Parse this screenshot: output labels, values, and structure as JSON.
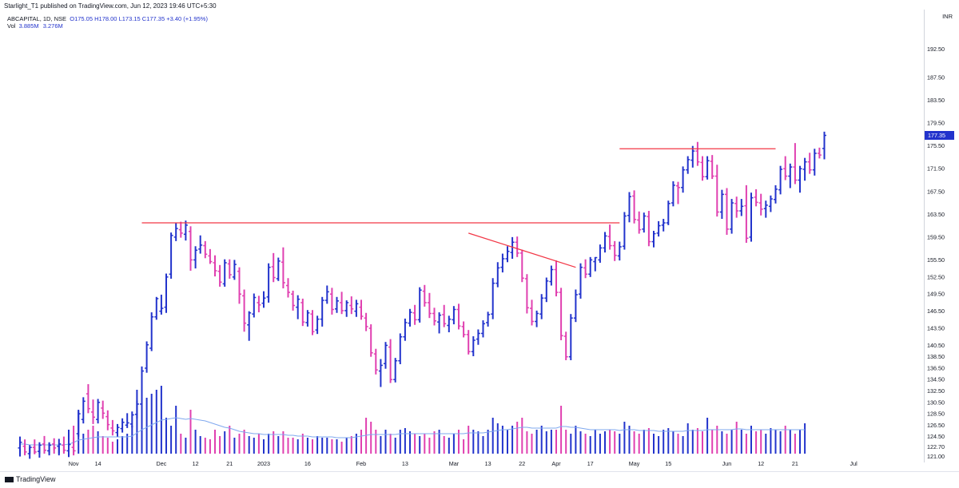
{
  "publish_line": "Starlight_T1 published on TradingView.com, Jun 12, 2023 19:46 UTC+5:30",
  "legend": {
    "symbol": "ABCAPITAL, 1D, NSE",
    "open": "O175.05",
    "high": "H178.00",
    "low": "L173.15",
    "close": "C177.35",
    "change": "+3.40 (+1.95%)",
    "vol_label": "Vol",
    "vol_value": "3.885M",
    "vol_ma": "3.276M"
  },
  "currency": "INR",
  "footer_brand": "TradingView",
  "colors": {
    "up": "#2233cc",
    "down": "#e040b0",
    "line": "#f23645",
    "vol_ma": "#7fa8ef",
    "last_price_bg": "#2233cc"
  },
  "chart_data": {
    "type": "ohlc-bar",
    "symbol": "ABCAPITAL",
    "interval": "1D",
    "exchange": "NSE",
    "ylim": [
      121.5,
      195.5
    ],
    "y_ticks": [
      192.5,
      187.5,
      183.5,
      179.5,
      175.5,
      171.5,
      167.5,
      163.5,
      159.5,
      155.5,
      152.5,
      149.5,
      146.5,
      143.5,
      140.5,
      138.5,
      136.5,
      134.5,
      132.5,
      130.5,
      128.5,
      126.5,
      124.5,
      122.7,
      121.0
    ],
    "y_tick_labels": [
      "192.50",
      "187.50",
      "183.50",
      "179.50",
      "175.50",
      "171.50",
      "167.50",
      "163.50",
      "159.50",
      "155.50",
      "152.50",
      "149.50",
      "146.50",
      "143.50",
      "140.50",
      "138.50",
      "136.50",
      "134.50",
      "132.50",
      "130.50",
      "128.50",
      "126.50",
      "124.50",
      "122.70",
      "121.00"
    ],
    "last_price": "177.35",
    "x_ticks": [
      {
        "i": 11,
        "label": "Nov"
      },
      {
        "i": 16,
        "label": "14"
      },
      {
        "i": 29,
        "label": "Dec"
      },
      {
        "i": 36,
        "label": "12"
      },
      {
        "i": 43,
        "label": "21"
      },
      {
        "i": 50,
        "label": "2023"
      },
      {
        "i": 59,
        "label": "16"
      },
      {
        "i": 70,
        "label": "Feb"
      },
      {
        "i": 79,
        "label": "13"
      },
      {
        "i": 89,
        "label": "Mar"
      },
      {
        "i": 96,
        "label": "13"
      },
      {
        "i": 103,
        "label": "22"
      },
      {
        "i": 110,
        "label": "Apr"
      },
      {
        "i": 117,
        "label": "17"
      },
      {
        "i": 126,
        "label": "May"
      },
      {
        "i": 133,
        "label": "15"
      },
      {
        "i": 145,
        "label": "Jun"
      },
      {
        "i": 152,
        "label": "12"
      },
      {
        "i": 159,
        "label": "21"
      },
      {
        "i": 171,
        "label": "Jul"
      }
    ],
    "bars": [
      [
        122.5,
        124.5,
        121.0,
        123.5
      ],
      [
        122.8,
        124.0,
        121.2,
        121.8
      ],
      [
        121.5,
        123.0,
        120.6,
        122.6
      ],
      [
        122.6,
        124.0,
        121.4,
        121.8
      ],
      [
        121.9,
        123.5,
        120.8,
        123.0
      ],
      [
        123.2,
        124.6,
        121.9,
        122.1
      ],
      [
        122.0,
        123.5,
        121.2,
        123.0
      ],
      [
        123.2,
        124.2,
        122.1,
        122.5
      ],
      [
        122.8,
        124.1,
        121.2,
        123.2
      ],
      [
        123.0,
        124.5,
        121.8,
        122.1
      ],
      [
        122.0,
        124.1,
        120.9,
        123.1
      ],
      [
        122.6,
        124.4,
        121.2,
        122.0
      ],
      [
        125.0,
        129.0,
        124.5,
        128.5
      ],
      [
        127.5,
        131.4,
        126.8,
        130.7
      ],
      [
        132.0,
        133.7,
        128.6,
        129.4
      ],
      [
        128.8,
        131.0,
        126.7,
        127.9
      ],
      [
        127.5,
        131.1,
        126.8,
        130.5
      ],
      [
        129.5,
        130.8,
        127.6,
        128.6
      ],
      [
        128.0,
        129.1,
        125.6,
        126.6
      ],
      [
        126.0,
        127.4,
        124.7,
        125.5
      ],
      [
        125.2,
        126.7,
        124.5,
        126.1
      ],
      [
        125.9,
        127.7,
        125.2,
        127.0
      ],
      [
        126.5,
        128.6,
        126.0,
        126.9
      ],
      [
        126.7,
        128.9,
        126.1,
        128.3
      ],
      [
        128.4,
        130.8,
        127.7,
        130.2
      ],
      [
        130.2,
        136.8,
        129.5,
        136.0
      ],
      [
        136.5,
        141.2,
        135.7,
        140.6
      ],
      [
        140.0,
        146.3,
        139.5,
        145.5
      ],
      [
        145.5,
        149.0,
        145.0,
        148.7
      ],
      [
        146.5,
        149.4,
        145.9,
        147.0
      ],
      [
        147.2,
        153.1,
        146.2,
        152.5
      ],
      [
        153.0,
        160.3,
        152.2,
        159.8
      ],
      [
        159.5,
        162.0,
        158.8,
        161.0
      ],
      [
        160.8,
        162.2,
        159.4,
        160.2
      ],
      [
        160.0,
        162.4,
        158.9,
        161.6
      ],
      [
        160.5,
        161.4,
        153.6,
        155.5
      ],
      [
        155.5,
        157.9,
        154.0,
        157.2
      ],
      [
        157.4,
        159.8,
        156.6,
        158.1
      ],
      [
        158.0,
        158.8,
        155.8,
        156.5
      ],
      [
        156.2,
        157.4,
        154.8,
        155.2
      ],
      [
        155.0,
        156.3,
        152.6,
        153.6
      ],
      [
        153.5,
        154.6,
        150.8,
        151.6
      ],
      [
        151.3,
        155.6,
        150.8,
        155.0
      ],
      [
        154.8,
        155.6,
        152.2,
        152.9
      ],
      [
        152.5,
        155.5,
        152.0,
        154.7
      ],
      [
        153.5,
        154.2,
        147.8,
        149.5
      ],
      [
        149.2,
        150.3,
        142.9,
        144.4
      ],
      [
        144.1,
        146.5,
        141.3,
        146.2
      ],
      [
        146.0,
        149.6,
        145.4,
        148.9
      ],
      [
        148.0,
        149.2,
        146.3,
        147.6
      ],
      [
        147.9,
        150.0,
        147.1,
        148.8
      ],
      [
        149.0,
        154.9,
        148.0,
        154.2
      ],
      [
        154.3,
        156.7,
        151.6,
        152.4
      ],
      [
        152.2,
        155.9,
        151.8,
        155.3
      ],
      [
        155.1,
        157.7,
        150.5,
        151.5
      ],
      [
        151.0,
        152.3,
        148.9,
        149.8
      ],
      [
        149.5,
        150.1,
        146.6,
        147.5
      ],
      [
        147.2,
        149.3,
        145.1,
        148.6
      ],
      [
        148.0,
        148.7,
        143.9,
        144.6
      ],
      [
        144.5,
        146.7,
        143.8,
        146.2
      ],
      [
        146.0,
        146.7,
        142.3,
        142.9
      ],
      [
        143.2,
        145.7,
        142.5,
        145.1
      ],
      [
        145.1,
        149.0,
        143.8,
        148.4
      ],
      [
        148.4,
        151.0,
        147.8,
        149.9
      ],
      [
        149.5,
        150.6,
        145.9,
        146.8
      ],
      [
        146.9,
        149.0,
        146.2,
        148.3
      ],
      [
        148.0,
        149.9,
        146.0,
        146.6
      ],
      [
        146.6,
        148.4,
        145.5,
        148.0
      ],
      [
        147.5,
        149.1,
        146.0,
        146.9
      ],
      [
        146.5,
        148.5,
        145.5,
        147.8
      ],
      [
        147.2,
        148.5,
        145.0,
        145.6
      ],
      [
        145.3,
        146.2,
        143.0,
        143.8
      ],
      [
        143.5,
        144.2,
        138.5,
        139.2
      ],
      [
        139.0,
        139.9,
        135.4,
        136.2
      ],
      [
        136.0,
        138.1,
        133.2,
        137.0
      ],
      [
        137.3,
        141.1,
        136.4,
        140.5
      ],
      [
        140.2,
        141.6,
        133.9,
        134.5
      ],
      [
        134.5,
        138.3,
        134.0,
        137.8
      ],
      [
        137.8,
        142.6,
        137.2,
        142.0
      ],
      [
        142.0,
        145.2,
        141.3,
        144.5
      ],
      [
        144.4,
        146.9,
        143.8,
        146.3
      ],
      [
        146.2,
        147.6,
        144.1,
        145.0
      ],
      [
        145.0,
        150.7,
        144.5,
        150.2
      ],
      [
        150.0,
        151.1,
        147.3,
        148.0
      ],
      [
        148.0,
        149.7,
        145.3,
        146.1
      ],
      [
        146.1,
        147.1,
        144.0,
        144.8
      ],
      [
        144.6,
        146.3,
        142.6,
        145.8
      ],
      [
        145.9,
        147.6,
        143.7,
        144.3
      ],
      [
        144.0,
        145.7,
        142.8,
        145.1
      ],
      [
        145.0,
        147.4,
        144.2,
        146.8
      ],
      [
        146.8,
        147.8,
        143.3,
        143.9
      ],
      [
        143.8,
        144.7,
        141.9,
        142.4
      ],
      [
        142.4,
        143.2,
        138.9,
        139.4
      ],
      [
        139.4,
        142.1,
        138.6,
        141.4
      ],
      [
        141.6,
        143.3,
        140.6,
        142.6
      ],
      [
        142.6,
        144.9,
        141.9,
        144.3
      ],
      [
        144.5,
        146.4,
        143.8,
        145.9
      ],
      [
        146.0,
        152.3,
        145.1,
        151.4
      ],
      [
        151.4,
        155.1,
        150.7,
        154.1
      ],
      [
        154.2,
        156.6,
        153.3,
        155.7
      ],
      [
        155.7,
        157.9,
        155.1,
        157.0
      ],
      [
        156.8,
        159.5,
        155.7,
        158.6
      ],
      [
        158.6,
        159.6,
        156.0,
        156.7
      ],
      [
        156.7,
        157.3,
        151.6,
        152.3
      ],
      [
        152.2,
        153.0,
        146.1,
        147.1
      ],
      [
        147.0,
        148.5,
        144.0,
        144.7
      ],
      [
        144.7,
        146.6,
        143.7,
        146.1
      ],
      [
        146.0,
        149.5,
        145.1,
        148.8
      ],
      [
        148.8,
        152.4,
        148.1,
        151.8
      ],
      [
        151.7,
        154.5,
        151.0,
        153.8
      ],
      [
        153.8,
        155.4,
        149.1,
        149.8
      ],
      [
        149.8,
        150.6,
        141.4,
        142.2
      ],
      [
        142.1,
        142.9,
        137.9,
        138.5
      ],
      [
        138.5,
        146.0,
        137.9,
        145.3
      ],
      [
        145.3,
        150.3,
        144.6,
        149.4
      ],
      [
        149.5,
        154.9,
        148.7,
        154.2
      ],
      [
        154.1,
        155.6,
        152.3,
        153.0
      ],
      [
        153.0,
        156.0,
        152.5,
        155.5
      ],
      [
        155.2,
        156.0,
        153.5,
        155.9
      ],
      [
        155.5,
        158.2,
        155.0,
        157.6
      ],
      [
        157.6,
        160.4,
        156.8,
        159.7
      ],
      [
        159.6,
        161.7,
        157.3,
        158.0
      ],
      [
        158.0,
        158.8,
        155.3,
        156.3
      ],
      [
        156.2,
        158.7,
        155.4,
        157.8
      ],
      [
        157.9,
        163.9,
        157.3,
        163.2
      ],
      [
        163.3,
        167.4,
        162.1,
        166.6
      ],
      [
        166.7,
        167.7,
        161.9,
        162.6
      ],
      [
        162.5,
        164.0,
        160.1,
        160.8
      ],
      [
        160.9,
        163.8,
        160.3,
        163.2
      ],
      [
        163.1,
        164.1,
        157.9,
        158.7
      ],
      [
        158.7,
        160.6,
        157.7,
        160.1
      ],
      [
        160.2,
        162.3,
        159.6,
        161.5
      ],
      [
        161.6,
        162.7,
        160.5,
        162.0
      ],
      [
        162.0,
        165.9,
        161.6,
        165.4
      ],
      [
        165.5,
        169.3,
        164.9,
        168.6
      ],
      [
        168.5,
        169.2,
        165.3,
        168.2
      ],
      [
        168.2,
        171.9,
        167.3,
        171.3
      ],
      [
        171.3,
        173.7,
        170.6,
        173.1
      ],
      [
        173.0,
        175.5,
        171.7,
        174.6
      ],
      [
        174.6,
        176.2,
        172.0,
        172.7
      ],
      [
        172.6,
        173.7,
        169.4,
        170.1
      ],
      [
        170.1,
        173.7,
        169.6,
        172.9
      ],
      [
        172.8,
        173.9,
        169.7,
        170.2
      ],
      [
        170.2,
        172.2,
        163.1,
        163.9
      ],
      [
        163.9,
        167.8,
        162.7,
        167.0
      ],
      [
        167.0,
        168.1,
        159.9,
        160.9
      ],
      [
        160.9,
        166.2,
        160.1,
        165.5
      ],
      [
        165.4,
        166.6,
        162.9,
        164.1
      ],
      [
        164.1,
        166.2,
        163.2,
        164.9
      ],
      [
        165.0,
        168.6,
        158.5,
        159.3
      ],
      [
        159.5,
        167.3,
        158.7,
        166.4
      ],
      [
        166.5,
        167.9,
        164.9,
        165.6
      ],
      [
        165.5,
        167.1,
        163.3,
        164.4
      ],
      [
        164.5,
        165.9,
        162.9,
        165.1
      ],
      [
        164.9,
        166.8,
        163.9,
        166.2
      ],
      [
        166.1,
        168.6,
        165.4,
        167.9
      ],
      [
        167.8,
        172.0,
        167.0,
        171.4
      ],
      [
        171.5,
        173.7,
        169.5,
        170.2
      ],
      [
        170.2,
        172.4,
        168.1,
        171.8
      ],
      [
        171.8,
        176.0,
        168.8,
        169.5
      ],
      [
        169.5,
        172.0,
        167.3,
        171.5
      ],
      [
        171.4,
        173.4,
        169.4,
        172.7
      ],
      [
        172.7,
        174.3,
        170.6,
        171.3
      ],
      [
        171.3,
        175.0,
        170.3,
        174.2
      ],
      [
        174.2,
        175.2,
        173.3,
        173.9
      ],
      [
        175.05,
        178.0,
        173.15,
        177.35
      ]
    ],
    "volume_note": "relative volume bars with moving-average line (Vol 3.885M, MA 3.276M)",
    "volume": [
      0.12,
      0.1,
      0.08,
      0.09,
      0.1,
      0.12,
      0.13,
      0.09,
      0.1,
      0.11,
      0.3,
      0.35,
      0.55,
      0.25,
      0.3,
      0.35,
      0.28,
      0.22,
      0.2,
      0.15,
      0.18,
      0.22,
      0.25,
      0.35,
      0.8,
      0.9,
      0.7,
      0.75,
      0.8,
      0.85,
      0.45,
      0.35,
      0.6,
      0.25,
      0.2,
      0.55,
      0.3,
      0.22,
      0.2,
      0.18,
      0.3,
      0.22,
      0.28,
      0.35,
      0.2,
      0.25,
      0.3,
      0.22,
      0.2,
      0.25,
      0.18,
      0.25,
      0.28,
      0.22,
      0.28,
      0.2,
      0.2,
      0.18,
      0.25,
      0.2,
      0.18,
      0.22,
      0.2,
      0.2,
      0.18,
      0.18,
      0.15,
      0.2,
      0.22,
      0.25,
      0.3,
      0.45,
      0.4,
      0.3,
      0.22,
      0.3,
      0.25,
      0.2,
      0.3,
      0.32,
      0.28,
      0.25,
      0.22,
      0.25,
      0.2,
      0.28,
      0.3,
      0.22,
      0.2,
      0.25,
      0.3,
      0.18,
      0.35,
      0.3,
      0.28,
      0.22,
      0.3,
      0.45,
      0.38,
      0.35,
      0.3,
      0.35,
      0.4,
      0.45,
      0.28,
      0.25,
      0.3,
      0.35,
      0.28,
      0.3,
      0.3,
      0.6,
      0.3,
      0.25,
      0.35,
      0.28,
      0.25,
      0.22,
      0.3,
      0.25,
      0.28,
      0.3,
      0.28,
      0.25,
      0.4,
      0.35,
      0.28,
      0.25,
      0.3,
      0.32,
      0.25,
      0.22,
      0.3,
      0.32,
      0.28,
      0.25,
      0.22,
      0.38,
      0.3,
      0.32,
      0.28,
      0.45,
      0.3,
      0.35,
      0.28,
      0.25,
      0.3,
      0.4,
      0.3,
      0.25,
      0.35,
      0.28,
      0.3,
      0.25,
      0.32,
      0.3,
      0.28,
      0.35,
      0.3,
      0.25,
      0.3,
      0.38
    ],
    "volume_ma": [
      0.12,
      0.12,
      0.11,
      0.11,
      0.11,
      0.11,
      0.11,
      0.11,
      0.11,
      0.11,
      0.12,
      0.14,
      0.17,
      0.18,
      0.19,
      0.2,
      0.21,
      0.21,
      0.21,
      0.21,
      0.21,
      0.21,
      0.21,
      0.22,
      0.26,
      0.3,
      0.33,
      0.36,
      0.39,
      0.42,
      0.43,
      0.44,
      0.45,
      0.44,
      0.43,
      0.44,
      0.43,
      0.42,
      0.41,
      0.39,
      0.37,
      0.35,
      0.33,
      0.32,
      0.3,
      0.28,
      0.27,
      0.26,
      0.25,
      0.25,
      0.24,
      0.24,
      0.24,
      0.24,
      0.24,
      0.23,
      0.23,
      0.22,
      0.22,
      0.22,
      0.21,
      0.21,
      0.21,
      0.21,
      0.21,
      0.2,
      0.2,
      0.2,
      0.2,
      0.21,
      0.22,
      0.23,
      0.24,
      0.24,
      0.24,
      0.24,
      0.24,
      0.24,
      0.25,
      0.25,
      0.25,
      0.25,
      0.25,
      0.25,
      0.25,
      0.25,
      0.25,
      0.25,
      0.25,
      0.25,
      0.25,
      0.25,
      0.26,
      0.26,
      0.26,
      0.26,
      0.27,
      0.28,
      0.29,
      0.3,
      0.3,
      0.31,
      0.32,
      0.33,
      0.33,
      0.32,
      0.32,
      0.32,
      0.32,
      0.32,
      0.32,
      0.34,
      0.34,
      0.33,
      0.33,
      0.32,
      0.31,
      0.3,
      0.3,
      0.3,
      0.3,
      0.3,
      0.3,
      0.29,
      0.3,
      0.3,
      0.3,
      0.29,
      0.29,
      0.29,
      0.29,
      0.28,
      0.28,
      0.28,
      0.28,
      0.28,
      0.28,
      0.29,
      0.29,
      0.29,
      0.29,
      0.3,
      0.3,
      0.3,
      0.3,
      0.3,
      0.3,
      0.31,
      0.31,
      0.3,
      0.3,
      0.3,
      0.3,
      0.3,
      0.3,
      0.3,
      0.3,
      0.3,
      0.3,
      0.3,
      0.3,
      0.3
    ],
    "trendlines": [
      {
        "name": "resistance-dec",
        "from": {
          "i": 25,
          "y": 162.0
        },
        "to": {
          "i": 123,
          "y": 162.0
        }
      },
      {
        "name": "descending-mar",
        "from": {
          "i": 92,
          "y": 160.2
        },
        "to": {
          "i": 114,
          "y": 154.2
        }
      },
      {
        "name": "resistance-may",
        "from": {
          "i": 123,
          "y": 175.0
        },
        "to": {
          "i": 155,
          "y": 175.0
        }
      }
    ]
  }
}
